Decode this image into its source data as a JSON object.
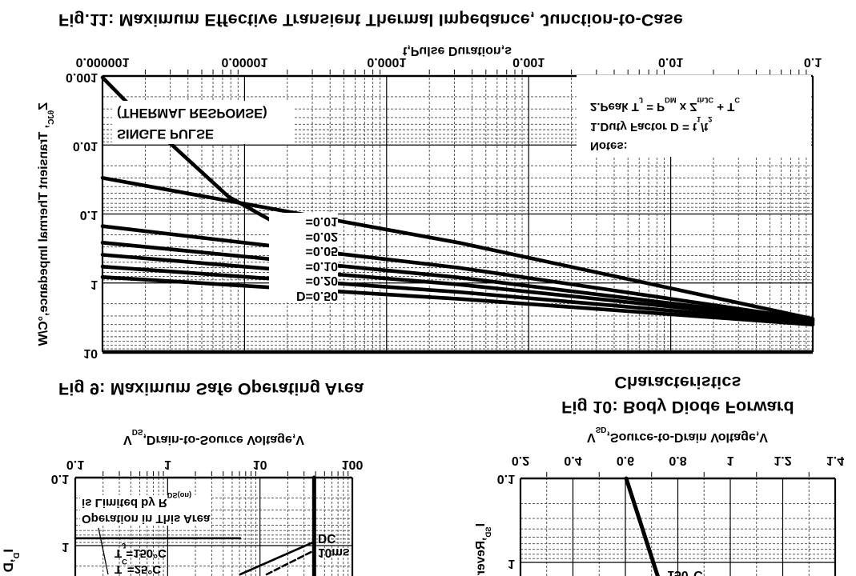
{
  "presentation": {
    "flipped_vertically": true,
    "background": "#ffffff",
    "ink": "#000000"
  },
  "page": {
    "fig11_title": "Fig.11: Maximum Effective Transient Thermal Impedance, Junction-to-Case",
    "fig9_title": "Fig 9: Maximum Safe Operating Area",
    "fig10_title_line1": "Fig 10: Body Diode Forward",
    "fig10_title_line2": "Characteristics"
  },
  "chart_data": [
    {
      "id": "fig11",
      "type": "line",
      "title": "Fig.11: Maximum Effective Transient Thermal Impedance, Junction-to-Case",
      "xlabel": "t,Pulse Duration,s",
      "ylabel": "ZθJC, Transient Thermal Impedance,°C/W",
      "xscale": "log",
      "yscale": "log",
      "xlim": [
        1e-06,
        0.1
      ],
      "ylim": [
        0.001,
        10
      ],
      "xticks": [
        "0.000001",
        "0.00001",
        "0.0001",
        "0.001",
        "0.01",
        "0.1"
      ],
      "yticks": [
        "10",
        "1",
        "0.1",
        "0.01",
        "0.001"
      ],
      "grid": "major solid, log minors dashed",
      "legend_position": "in-plot labels",
      "curve_labels": [
        "D=0.50",
        "=0.20",
        "=0.10",
        "=0.05",
        "=0.02",
        "=0.01"
      ],
      "single_pulse_label": [
        "SINGLE PULSE",
        "(THERMAL RESPONSE)"
      ],
      "series": [
        {
          "name": "D=0.50",
          "style": "solid",
          "points": [
            [
              1e-06,
              0.82
            ],
            [
              0.00032,
              1.7
            ],
            [
              0.1,
              4.0
            ]
          ]
        },
        {
          "name": "D=0.20",
          "style": "solid",
          "points": [
            [
              1e-06,
              0.58
            ],
            [
              0.00032,
              1.35
            ],
            [
              0.1,
              3.8
            ]
          ]
        },
        {
          "name": "D=0.10",
          "style": "solid",
          "points": [
            [
              1e-06,
              0.39
            ],
            [
              0.00032,
              1.05
            ],
            [
              0.1,
              3.6
            ]
          ]
        },
        {
          "name": "D=0.05",
          "style": "solid",
          "points": [
            [
              1e-06,
              0.26
            ],
            [
              0.00032,
              0.83
            ],
            [
              0.1,
              3.5
            ]
          ]
        },
        {
          "name": "D=0.02",
          "style": "solid",
          "points": [
            [
              1e-06,
              0.15
            ],
            [
              0.00032,
              0.6
            ],
            [
              0.1,
              3.4
            ]
          ]
        },
        {
          "name": "D=0.01",
          "style": "solid",
          "points": [
            [
              1e-06,
              0.03
            ],
            [
              0.00032,
              0.26
            ],
            [
              0.1,
              3.3
            ]
          ]
        },
        {
          "name": "SINGLE PULSE",
          "style": "solid",
          "points": [
            [
              1e-06,
              0.00105
            ],
            [
              1.8e-06,
              0.0036
            ],
            [
              3.8e-06,
              0.0148
            ],
            [
              7.7e-06,
              0.056
            ],
            [
              1.6e-05,
              0.13
            ],
            [
              1.9e-05,
              0.165
            ]
          ]
        }
      ]
    },
    {
      "id": "fig9",
      "type": "line",
      "title": "Fig 9: Maximum Safe Operating Area",
      "xlabel": "VDS,Drain-to-Source Voltage,V",
      "ylabel_visible": "ID,D",
      "xscale": "log",
      "yscale": "log",
      "xlim": [
        0.1,
        100
      ],
      "ylim_visible": [
        0.1,
        2.8
      ],
      "xticks": [
        "0.1",
        "1",
        "10",
        "100"
      ],
      "yticks": [
        "0.1",
        "1"
      ],
      "annotations": [
        "Operation in This Area is Limited by RDS(on)",
        "TJ=150°C",
        "TC=25°C",
        "DC",
        "10ms"
      ],
      "series": [
        {
          "name": "current-limit",
          "style": "solid",
          "points": [
            [
              0.1,
              0.78
            ],
            [
              6.1,
              0.78
            ]
          ]
        },
        {
          "name": "DC",
          "style": "solid",
          "points": [
            [
              6.1,
              2.65
            ],
            [
              38.6,
              0.88
            ]
          ]
        },
        {
          "name": "10ms",
          "style": "dashed",
          "points": [
            [
              11.8,
              2.65
            ],
            [
              38.6,
              1.18
            ]
          ]
        },
        {
          "name": "voltage-limit",
          "style": "solid-thick",
          "points": [
            [
              38.6,
              2.8
            ],
            [
              38.6,
              0.1
            ]
          ]
        }
      ]
    },
    {
      "id": "fig10",
      "type": "line",
      "title": "Fig 10: Body Diode Forward Characteristics",
      "xlabel": "VSD,Source-to-Drain Voltage,V",
      "ylabel_visible": "ISD,Rever",
      "xscale": "linear",
      "yscale": "log",
      "xlim": [
        0.2,
        1.4
      ],
      "ylim_visible": [
        0.1,
        1.45
      ],
      "xticks": [
        "0.2",
        "0.4",
        "0.6",
        "0.8",
        "1",
        "1.2",
        "1.4"
      ],
      "yticks": [
        "0.1",
        "1"
      ],
      "annotations": [
        "150°C"
      ],
      "series": [
        {
          "name": "150°C",
          "style": "solid-thick",
          "points": [
            [
              0.603,
              0.1
            ],
            [
              0.723,
              1.45
            ]
          ]
        }
      ]
    }
  ],
  "labels": {
    "z_axis": [
      [
        "t",
        "Z"
      ],
      [
        "s",
        "θJC"
      ],
      [
        "t",
        ", Transient Thermal Impedance,°C/W"
      ]
    ],
    "vds_axis": [
      [
        "t",
        "V"
      ],
      [
        "s",
        "DS"
      ],
      [
        "t",
        ",Drain-to-Source Voltage,V"
      ]
    ],
    "vsd_axis": [
      [
        "t",
        "V"
      ],
      [
        "s",
        "SD"
      ],
      [
        "t",
        ",Source-to-Drain Voltage,V"
      ]
    ],
    "note0": [
      [
        "t",
        "Notes:"
      ]
    ],
    "note1": [
      [
        "t",
        "1.Duty Factor D = t"
      ],
      [
        "s",
        "1"
      ],
      [
        "t",
        "/t"
      ],
      [
        "s",
        "2"
      ]
    ],
    "note2": [
      [
        "t",
        "2.Peak T"
      ],
      [
        "s",
        "J"
      ],
      [
        "t",
        " = P"
      ],
      [
        "s",
        "DM"
      ],
      [
        "t",
        " x Z"
      ],
      [
        "s",
        "thJC"
      ],
      [
        "t",
        " + T"
      ],
      [
        "s",
        "C"
      ]
    ],
    "soa_line1": [
      [
        "t",
        "Operation in This Area"
      ]
    ],
    "soa_line2": [
      [
        "t",
        "is Limited by R"
      ],
      [
        "s",
        "DS(on)"
      ]
    ],
    "temp_tc": [
      [
        "t",
        "T"
      ],
      [
        "s",
        "C"
      ],
      [
        "t",
        "=25°C"
      ]
    ],
    "temp_tj": [
      [
        "t",
        "T"
      ],
      [
        "s",
        "J"
      ],
      [
        "t",
        "=150°C"
      ]
    ],
    "dc_label": "DC",
    "ms10_label": "10ms",
    "diode_temp_label": "150°C",
    "fig9_ylabel_partial": [
      [
        "t",
        "I"
      ],
      [
        "s",
        "D"
      ],
      [
        "t",
        ",D"
      ]
    ],
    "fig10_ylabel_partial": [
      [
        "t",
        "I"
      ],
      [
        "s",
        "SD"
      ],
      [
        "t",
        ",Rever"
      ]
    ]
  }
}
